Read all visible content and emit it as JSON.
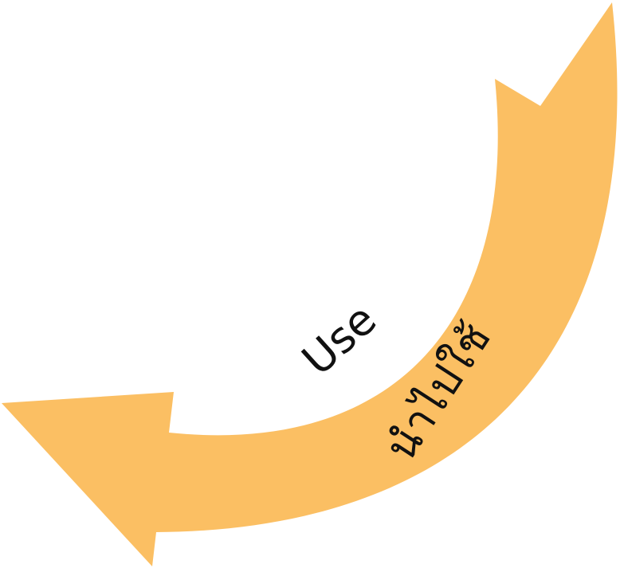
{
  "diagram": {
    "labels": {
      "english": "Use",
      "thai": "นำไปใช้"
    },
    "colors": {
      "arrow_fill": "#FBBF63",
      "text": "#111111",
      "background": "#FFFFFF"
    }
  }
}
